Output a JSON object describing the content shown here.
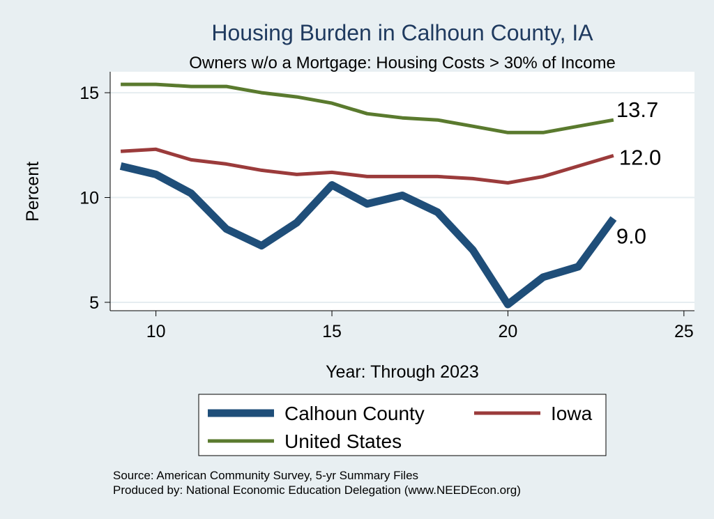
{
  "chart_data": {
    "type": "line",
    "title": "Housing Burden in Calhoun County, IA",
    "subtitle": "Owners w/o a Mortgage: Housing Costs > 30% of Income",
    "xlabel": "Year: Through 2023",
    "ylabel": "Percent",
    "xlim": [
      8.7,
      25.3
    ],
    "ylim": [
      4.6,
      16.0
    ],
    "xticks": [
      10,
      15,
      20,
      25
    ],
    "yticks": [
      5,
      10,
      15
    ],
    "grid": true,
    "legend_position": "bottom",
    "x": [
      9,
      10,
      11,
      12,
      13,
      14,
      15,
      16,
      17,
      18,
      19,
      20,
      21,
      22,
      23
    ],
    "series": [
      {
        "name": "Calhoun County",
        "color": "#1f4e79",
        "width": "thick",
        "values": [
          11.5,
          11.1,
          10.2,
          8.5,
          7.7,
          8.8,
          10.6,
          9.7,
          10.1,
          9.3,
          7.5,
          4.9,
          6.2,
          6.7,
          9.0
        ],
        "end_label": "9.0"
      },
      {
        "name": "Iowa",
        "color": "#9b3b3b",
        "width": "medium",
        "values": [
          12.2,
          12.3,
          11.8,
          11.6,
          11.3,
          11.1,
          11.2,
          11.0,
          11.0,
          11.0,
          10.9,
          10.7,
          11.0,
          11.5,
          12.0
        ],
        "end_label": "12.0"
      },
      {
        "name": "United States",
        "color": "#5a7a2e",
        "width": "medium",
        "values": [
          15.4,
          15.4,
          15.3,
          15.3,
          15.0,
          14.8,
          14.5,
          14.0,
          13.8,
          13.7,
          13.4,
          13.1,
          13.1,
          13.4,
          13.7
        ],
        "end_label": "13.7"
      }
    ],
    "footnotes": [
      "Source: American Community Survey, 5-yr Summary Files",
      "Produced by: National Economic Education Delegation (www.NEEDEcon.org)"
    ]
  },
  "colors": {
    "page_background": "#e8eff2",
    "plot_background": "#ffffff",
    "grid": "#e6edf0",
    "title": "#1f3a5f"
  }
}
